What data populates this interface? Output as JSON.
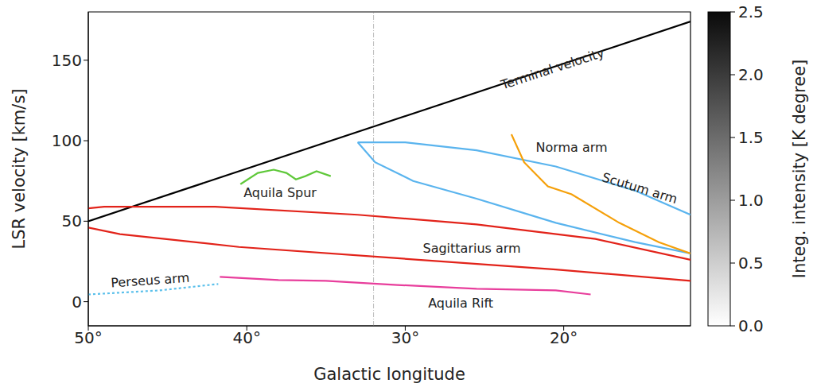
{
  "chart_data": {
    "type": "line",
    "xlabel": "Galactic longitude",
    "ylabel": "LSR velocity [km/s]",
    "xlim": [
      50,
      12
    ],
    "xticks": [
      {
        "value": 50,
        "label": "50°"
      },
      {
        "value": 40,
        "label": "40°"
      },
      {
        "value": 30,
        "label": "30°"
      },
      {
        "value": 20,
        "label": "20°"
      }
    ],
    "ylim": [
      -15,
      180
    ],
    "yticks": [
      0,
      50,
      100,
      150
    ],
    "grid": false,
    "vlines": [
      32
    ],
    "series": [
      {
        "name": "Terminal velocity",
        "color": "#000000",
        "line_style": "solid",
        "label_at": [
          20.7,
          144.8
        ],
        "lines": [
          [
            [
              50,
              50
            ],
            [
              12,
              174
            ]
          ]
        ]
      },
      {
        "name": "Aquila Spur",
        "color": "#5fc83a",
        "line_style": "solid",
        "label_at": [
          37.9,
          67.7
        ],
        "lines": [
          [
            [
              40.4,
              73
            ],
            [
              39.3,
              80
            ],
            [
              38.3,
              82
            ],
            [
              37.5,
              80
            ],
            [
              36.9,
              76
            ],
            [
              36.3,
              78
            ],
            [
              35.6,
              81
            ],
            [
              34.7,
              78
            ]
          ]
        ]
      },
      {
        "name": "Sagittarius arm",
        "color": "#e2231a",
        "line_style": "solid",
        "label_at": [
          25.8,
          33
        ],
        "lines": [
          [
            [
              50,
              58
            ],
            [
              49,
              59
            ],
            [
              42,
              59
            ],
            [
              33,
              54
            ],
            [
              25.5,
              48
            ],
            [
              18,
              39
            ],
            [
              12,
              26
            ]
          ],
          [
            [
              50,
              46
            ],
            [
              48,
              42
            ],
            [
              40.5,
              34
            ],
            [
              30.5,
              27
            ],
            [
              20.5,
              20
            ],
            [
              12,
              13
            ]
          ]
        ]
      },
      {
        "name": "Perseus arm",
        "color": "#5bc0eb",
        "line_style": "dotted",
        "label_at": [
          46.1,
          13.4
        ],
        "lines": [
          [
            [
              50,
              4.5
            ],
            [
              45.5,
              7
            ],
            [
              41.8,
              11
            ]
          ]
        ]
      },
      {
        "name": "Aquila Rift",
        "color": "#e83e9c",
        "line_style": "solid",
        "label_at": [
          26.5,
          -1
        ],
        "lines": [
          [
            [
              41.7,
              15.4
            ],
            [
              38,
              13.4
            ],
            [
              35,
              13
            ],
            [
              30.5,
              10.4
            ],
            [
              25.5,
              8
            ],
            [
              20.5,
              7
            ],
            [
              18.3,
              4.5
            ]
          ]
        ]
      },
      {
        "name": "Scutum arm",
        "color": "#5ab4ee",
        "line_style": "solid",
        "label_at": [
          15.2,
          70.6
        ],
        "lines": [
          [
            [
              33,
              99
            ],
            [
              30,
              99
            ],
            [
              25.5,
              94
            ],
            [
              20.5,
              84
            ],
            [
              15.5,
              69
            ],
            [
              12,
              54
            ]
          ],
          [
            [
              33,
              99
            ],
            [
              31.9,
              86.6
            ],
            [
              29.5,
              75
            ],
            [
              25.5,
              64
            ],
            [
              20.5,
              49
            ],
            [
              15.5,
              37
            ],
            [
              12,
              30
            ]
          ]
        ]
      },
      {
        "name": "Norma arm",
        "color": "#f5a00a",
        "line_style": "solid",
        "label_at": [
          19.5,
          96
        ],
        "lines": [
          [
            [
              23.3,
              104
            ],
            [
              22.5,
              86.6
            ],
            [
              21,
              71.6
            ],
            [
              19.5,
              66.7
            ],
            [
              16.5,
              49
            ],
            [
              14,
              37
            ],
            [
              12,
              30
            ]
          ]
        ]
      }
    ],
    "colorbar": {
      "label": "Integ. intensity [K degree]",
      "range": [
        0,
        2.5
      ],
      "ticks": [
        {
          "value": 0,
          "label": "0.0"
        },
        {
          "value": 0.5,
          "label": "0.5"
        },
        {
          "value": 1,
          "label": "1.0"
        },
        {
          "value": 1.5,
          "label": "1.5"
        },
        {
          "value": 2,
          "label": "2.0"
        },
        {
          "value": 2.5,
          "label": "2.5"
        }
      ]
    }
  }
}
